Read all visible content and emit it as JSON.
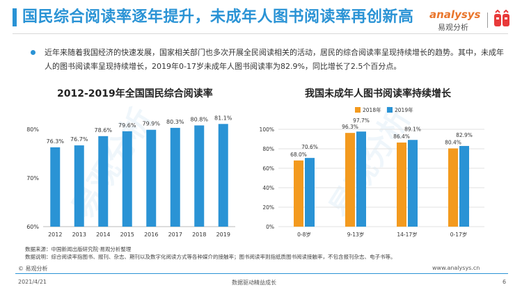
{
  "header": {
    "title": "国民综合阅读率逐年提升，未成年人图书阅读率再创新高",
    "logo_text": "analysys",
    "logo_cn": "易观分析"
  },
  "bullet": {
    "text": "近年来随着我国经济的快速发展，国家相关部门也多次开展全民阅读相关的活动，居民的综合阅读率呈现持续增长的趋势。其中，未成年人的图书阅读率呈现持续增长，2019年0-17岁未成年人图书阅读率为82.9%，同比增长了2.5个百分点。"
  },
  "chart_data": [
    {
      "type": "bar",
      "title": "2012-2019年全国国民综合阅读率",
      "categories": [
        "2012",
        "2013",
        "2014",
        "2015",
        "2016",
        "2017",
        "2018",
        "2019"
      ],
      "values": [
        76.3,
        76.7,
        78.6,
        79.6,
        79.9,
        80.3,
        80.8,
        81.1
      ],
      "data_labels": [
        "76.3%",
        "76.7%",
        "78.6%",
        "79.6%",
        "79.9%",
        "80.3%",
        "80.8%",
        "81.1%"
      ],
      "ylim": [
        60,
        80
      ],
      "yticks": [
        "60%",
        "70%",
        "80%"
      ],
      "grid": false,
      "color": "#2a93d5"
    },
    {
      "type": "bar",
      "title": "我国未成年人图书阅读率持续增长",
      "categories": [
        "0-8岁",
        "9-13岁",
        "14-17岁",
        "0-17岁"
      ],
      "series": [
        {
          "name": "2018年",
          "values": [
            68.0,
            96.3,
            86.4,
            80.4
          ],
          "labels": [
            "68.0%",
            "96.3%",
            "86.4%",
            "80.4%"
          ],
          "color": "#f39a1e"
        },
        {
          "name": "2019年",
          "values": [
            70.6,
            97.7,
            89.1,
            82.9
          ],
          "labels": [
            "70.6%",
            "97.7%",
            "89.1%",
            "82.9%"
          ],
          "color": "#2a93d5"
        }
      ],
      "ylim": [
        0,
        100
      ],
      "yticks": [
        "0%",
        "20%",
        "40%",
        "60%",
        "80%",
        "100%"
      ],
      "grid": true,
      "legend": "top-left"
    }
  ],
  "notes": {
    "source": "数据来源：中国新闻出版研究院·易观分析整理",
    "definition": "数据说明：综合阅读率指图书、报刊、杂志、期刊以及数字化阅读方式等各种媒介的接触率；图书阅读率则指纸质图书阅读接触率，不包含报刊杂志、电子书等。"
  },
  "footer": {
    "copyright": "© 易观分析",
    "url": "www.analysys.cn",
    "date": "2021/4/21",
    "slogan": "数据驱动精益成长",
    "page": "6"
  }
}
